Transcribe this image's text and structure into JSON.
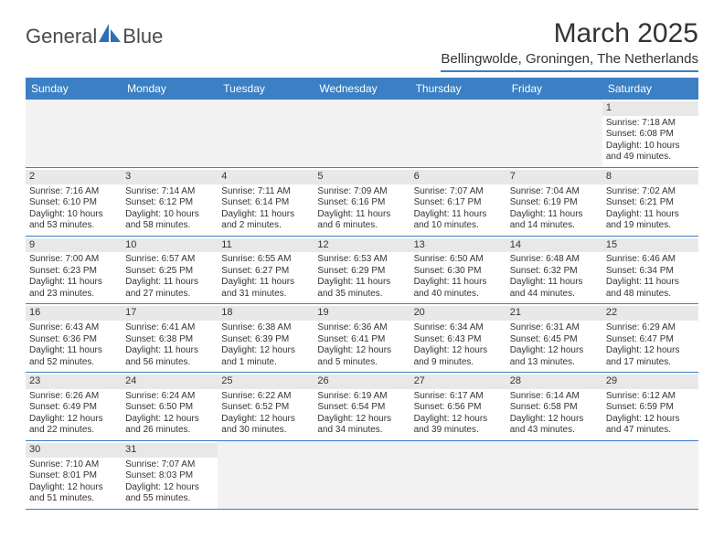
{
  "logo": {
    "text1": "General",
    "text2": "Blue"
  },
  "title": "March 2025",
  "location": "Bellingwolde, Groningen, The Netherlands",
  "weekdays": [
    "Sunday",
    "Monday",
    "Tuesday",
    "Wednesday",
    "Thursday",
    "Friday",
    "Saturday"
  ],
  "colors": {
    "header_bar": "#3b7fc4",
    "row_divider": "#3b7fc4",
    "daynum_bg": "#e8e8e8",
    "empty_bg": "#f2f2f2",
    "text": "#333333",
    "logo_text": "#4a4a4a",
    "logo_blue": "#2f6fb3",
    "background": "#ffffff"
  },
  "fonts": {
    "title_size_pt": 22,
    "location_size_pt": 11,
    "weekday_size_pt": 9,
    "cell_size_pt": 7.5
  },
  "grid": {
    "cols": 7,
    "rows": 6,
    "first_weekday_index": 6,
    "days_in_month": 31
  },
  "days": {
    "1": {
      "sunrise": "7:18 AM",
      "sunset": "6:08 PM",
      "daylight": "10 hours and 49 minutes."
    },
    "2": {
      "sunrise": "7:16 AM",
      "sunset": "6:10 PM",
      "daylight": "10 hours and 53 minutes."
    },
    "3": {
      "sunrise": "7:14 AM",
      "sunset": "6:12 PM",
      "daylight": "10 hours and 58 minutes."
    },
    "4": {
      "sunrise": "7:11 AM",
      "sunset": "6:14 PM",
      "daylight": "11 hours and 2 minutes."
    },
    "5": {
      "sunrise": "7:09 AM",
      "sunset": "6:16 PM",
      "daylight": "11 hours and 6 minutes."
    },
    "6": {
      "sunrise": "7:07 AM",
      "sunset": "6:17 PM",
      "daylight": "11 hours and 10 minutes."
    },
    "7": {
      "sunrise": "7:04 AM",
      "sunset": "6:19 PM",
      "daylight": "11 hours and 14 minutes."
    },
    "8": {
      "sunrise": "7:02 AM",
      "sunset": "6:21 PM",
      "daylight": "11 hours and 19 minutes."
    },
    "9": {
      "sunrise": "7:00 AM",
      "sunset": "6:23 PM",
      "daylight": "11 hours and 23 minutes."
    },
    "10": {
      "sunrise": "6:57 AM",
      "sunset": "6:25 PM",
      "daylight": "11 hours and 27 minutes."
    },
    "11": {
      "sunrise": "6:55 AM",
      "sunset": "6:27 PM",
      "daylight": "11 hours and 31 minutes."
    },
    "12": {
      "sunrise": "6:53 AM",
      "sunset": "6:29 PM",
      "daylight": "11 hours and 35 minutes."
    },
    "13": {
      "sunrise": "6:50 AM",
      "sunset": "6:30 PM",
      "daylight": "11 hours and 40 minutes."
    },
    "14": {
      "sunrise": "6:48 AM",
      "sunset": "6:32 PM",
      "daylight": "11 hours and 44 minutes."
    },
    "15": {
      "sunrise": "6:46 AM",
      "sunset": "6:34 PM",
      "daylight": "11 hours and 48 minutes."
    },
    "16": {
      "sunrise": "6:43 AM",
      "sunset": "6:36 PM",
      "daylight": "11 hours and 52 minutes."
    },
    "17": {
      "sunrise": "6:41 AM",
      "sunset": "6:38 PM",
      "daylight": "11 hours and 56 minutes."
    },
    "18": {
      "sunrise": "6:38 AM",
      "sunset": "6:39 PM",
      "daylight": "12 hours and 1 minute."
    },
    "19": {
      "sunrise": "6:36 AM",
      "sunset": "6:41 PM",
      "daylight": "12 hours and 5 minutes."
    },
    "20": {
      "sunrise": "6:34 AM",
      "sunset": "6:43 PM",
      "daylight": "12 hours and 9 minutes."
    },
    "21": {
      "sunrise": "6:31 AM",
      "sunset": "6:45 PM",
      "daylight": "12 hours and 13 minutes."
    },
    "22": {
      "sunrise": "6:29 AM",
      "sunset": "6:47 PM",
      "daylight": "12 hours and 17 minutes."
    },
    "23": {
      "sunrise": "6:26 AM",
      "sunset": "6:49 PM",
      "daylight": "12 hours and 22 minutes."
    },
    "24": {
      "sunrise": "6:24 AM",
      "sunset": "6:50 PM",
      "daylight": "12 hours and 26 minutes."
    },
    "25": {
      "sunrise": "6:22 AM",
      "sunset": "6:52 PM",
      "daylight": "12 hours and 30 minutes."
    },
    "26": {
      "sunrise": "6:19 AM",
      "sunset": "6:54 PM",
      "daylight": "12 hours and 34 minutes."
    },
    "27": {
      "sunrise": "6:17 AM",
      "sunset": "6:56 PM",
      "daylight": "12 hours and 39 minutes."
    },
    "28": {
      "sunrise": "6:14 AM",
      "sunset": "6:58 PM",
      "daylight": "12 hours and 43 minutes."
    },
    "29": {
      "sunrise": "6:12 AM",
      "sunset": "6:59 PM",
      "daylight": "12 hours and 47 minutes."
    },
    "30": {
      "sunrise": "7:10 AM",
      "sunset": "8:01 PM",
      "daylight": "12 hours and 51 minutes."
    },
    "31": {
      "sunrise": "7:07 AM",
      "sunset": "8:03 PM",
      "daylight": "12 hours and 55 minutes."
    }
  },
  "labels": {
    "sunrise": "Sunrise: ",
    "sunset": "Sunset: ",
    "daylight": "Daylight: "
  }
}
